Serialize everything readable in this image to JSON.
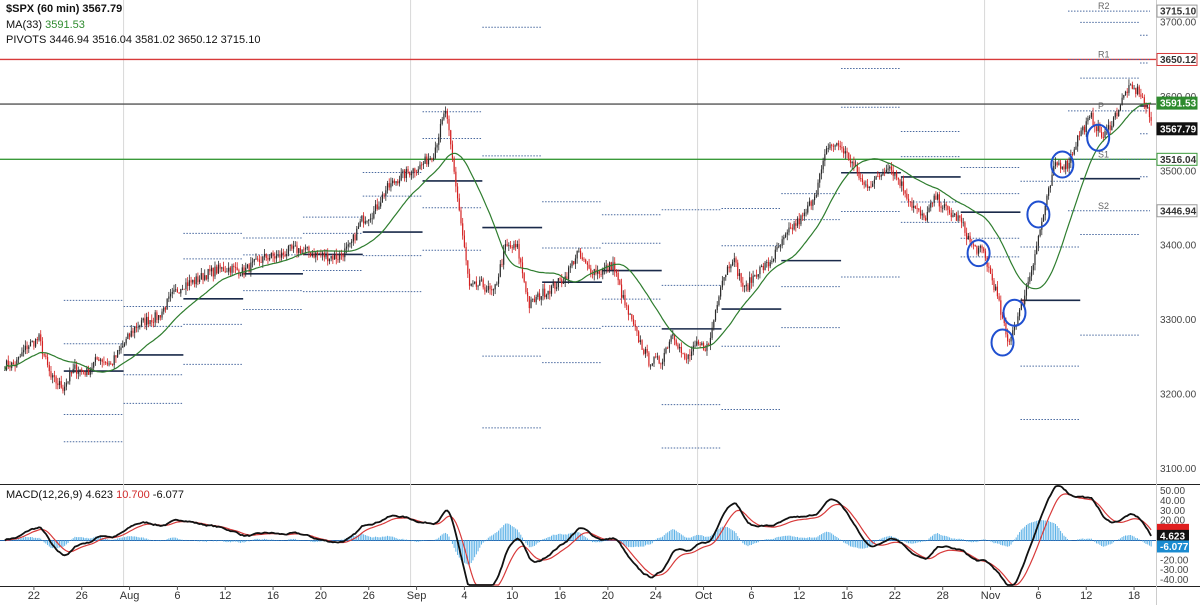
{
  "legend": {
    "symbol": "$SPX (60 min)",
    "last": "3567.79",
    "ma_label": "MA(33)",
    "ma_value": "3591.53",
    "pivots_label": "PIVOTS",
    "pivots_values": "3446.94 3516.04 3581.02 3650.12 3715.10",
    "macd_label": "MACD(12,26,9)",
    "macd_value": "4.623",
    "macd_signal": "10.700",
    "macd_hist": "-6.077"
  },
  "colors": {
    "up": "#2a2a2a",
    "down": "#d42020",
    "ma": "#2e7d2e",
    "r1_line": "#d83a3a",
    "pivot_line": "#555555",
    "s1_line": "#3a9a3a",
    "macd": "#111111",
    "signal": "#d83a3a",
    "hist": "#5ab0e6",
    "circle": "#1f4fd0",
    "last_tag": "#111111",
    "ma_tag": "#2e8b2e",
    "r1_tag": "#d83a3a",
    "macd_tag": "#1a8bd0",
    "signal_tag": "#e02020"
  },
  "chart_data": {
    "type": "candlestick",
    "title": "$SPX (60 min) 3567.79",
    "ylim": [
      3080,
      3730
    ],
    "y_ticks": [
      "3700.00",
      "3600.00",
      "3500.00",
      "3400.00",
      "3300.00",
      "3200.00",
      "3100.00"
    ],
    "y_tick_values": [
      3700,
      3600,
      3500,
      3400,
      3300,
      3200,
      3100
    ],
    "x_tick_labels": [
      "22",
      "26",
      "Aug",
      "6",
      "12",
      "16",
      "20",
      "26",
      "Sep",
      "4",
      "10",
      "16",
      "20",
      "24",
      "Oct",
      "6",
      "12",
      "16",
      "22",
      "28",
      "Nov",
      "6",
      "12",
      "18"
    ],
    "x_tick_session_index": [
      2,
      6,
      10,
      14,
      18,
      22,
      26,
      30,
      34,
      38,
      42,
      46,
      50,
      54,
      58,
      62,
      66,
      70,
      74,
      78,
      82,
      86,
      90,
      94
    ],
    "sessions": 96,
    "daily_close": [
      3240,
      3265,
      3275,
      3222,
      3210,
      3235,
      3230,
      3250,
      3240,
      3265,
      3290,
      3300,
      3305,
      3330,
      3348,
      3352,
      3362,
      3368,
      3370,
      3365,
      3375,
      3385,
      3385,
      3394,
      3395,
      3389,
      3386,
      3385,
      3398,
      3435,
      3445,
      3475,
      3490,
      3500,
      3508,
      3525,
      3582,
      3465,
      3343,
      3348,
      3335,
      3398,
      3397,
      3320,
      3335,
      3345,
      3357,
      3390,
      3368,
      3365,
      3375,
      3320,
      3280,
      3245,
      3245,
      3285,
      3245,
      3265,
      3265,
      3350,
      3385,
      3340,
      3365,
      3375,
      3400,
      3425,
      3440,
      3475,
      3535,
      3534,
      3511,
      3480,
      3488,
      3510,
      3486,
      3455,
      3435,
      3465,
      3445,
      3435,
      3400,
      3390,
      3340,
      3270,
      3310,
      3370,
      3442,
      3510,
      3509,
      3550,
      3572,
      3545,
      3575,
      3610,
      3608,
      3567.79
    ],
    "ma_label": "MA(33)",
    "ma_value": 3591.53,
    "pivot_levels": [
      {
        "label": "R2",
        "value": 3715.1
      },
      {
        "label": "R1",
        "value": 3650.12
      },
      {
        "label": "P",
        "value": 3581.02
      },
      {
        "label": "S1",
        "value": 3516.04
      },
      {
        "label": "S2",
        "value": 3446.94
      }
    ],
    "right_tags": [
      {
        "value": 3715.1,
        "text": "3715.10"
      },
      {
        "value": 3650.12,
        "text": "3650.12"
      },
      {
        "value": 3591.53,
        "text": "3591.53"
      },
      {
        "value": 3567.79,
        "text": "3567.79"
      },
      {
        "value": 3516.04,
        "text": "3516.04"
      },
      {
        "value": 3446.94,
        "text": "3446.94"
      }
    ],
    "circles_session_index": [
      81,
      83,
      84,
      86,
      88,
      91
    ],
    "macd": {
      "label": "MACD(12,26,9)",
      "ylim": [
        -45,
        55
      ],
      "y_ticks": [
        "50.00",
        "40.00",
        "30.00",
        "20.00",
        "-20.00",
        "-30.00",
        "-40.00"
      ],
      "y_tick_values": [
        50,
        40,
        30,
        20,
        -20,
        -30,
        -40
      ],
      "macd_value": 4.623,
      "signal_value": 10.7,
      "hist_value": -6.077
    }
  }
}
